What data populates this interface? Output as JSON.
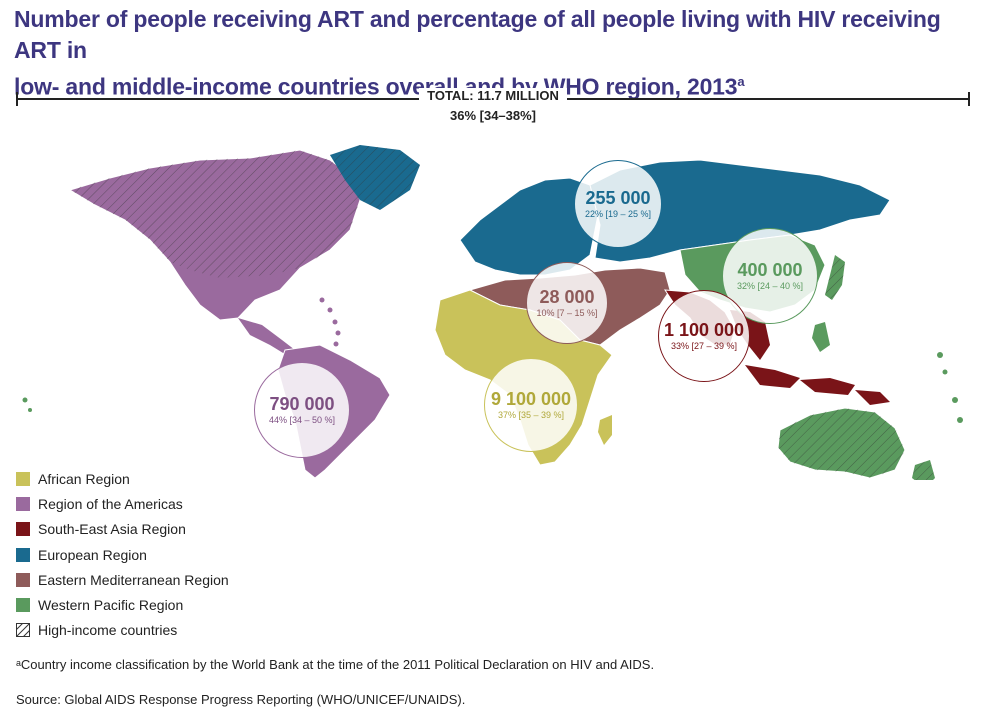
{
  "title": {
    "line1": "Number of people receiving ART and percentage of all people living with HIV receiving ART in",
    "line2": "low- and middle-income countries overall and by WHO region, 2013",
    "superscript": "a"
  },
  "total": {
    "label": "TOTAL: 11.7 MILLION",
    "percent": "36% [34–38%]"
  },
  "colors": {
    "african": "#c9c25a",
    "americas": "#9a6a9e",
    "south_east_asia": "#7a1418",
    "european": "#1a6a8f",
    "eastern_mediterranean": "#8e5b5a",
    "western_pacific": "#5a9a5e"
  },
  "regions": {
    "european": {
      "value": "255 000",
      "percent": "22% [19 – 25 %]"
    },
    "western_pacific": {
      "value": "400 000",
      "percent": "32% [24 – 40 %]"
    },
    "eastern_mediterranean": {
      "value": "28 000",
      "percent": "10% [7 – 15 %]"
    },
    "south_east_asia": {
      "value": "1 100 000",
      "percent": "33% [27 – 39 %]"
    },
    "african": {
      "value": "9 100 000",
      "percent": "37% [35 – 39 %]"
    },
    "americas": {
      "value": "790 000",
      "percent": "44% [34 – 50 %]"
    }
  },
  "legend": [
    {
      "label": "African Region",
      "color": "#c9c25a"
    },
    {
      "label": "Region of the Americas",
      "color": "#9a6a9e"
    },
    {
      "label": "South-East Asia Region",
      "color": "#7a1418"
    },
    {
      "label": "European Region",
      "color": "#1a6a8f"
    },
    {
      "label": "Eastern Mediterranean Region",
      "color": "#8e5b5a"
    },
    {
      "label": "Western Pacific Region",
      "color": "#5a9a5e"
    },
    {
      "label": "High-income countries",
      "pattern": "hatched"
    }
  ],
  "footnote": "ᵃCountry income classification by the World Bank at the time of the 2011 Political Declaration on HIV and AIDS.",
  "source": "Source: Global AIDS Response Progress Reporting (WHO/UNICEF/UNAIDS)."
}
